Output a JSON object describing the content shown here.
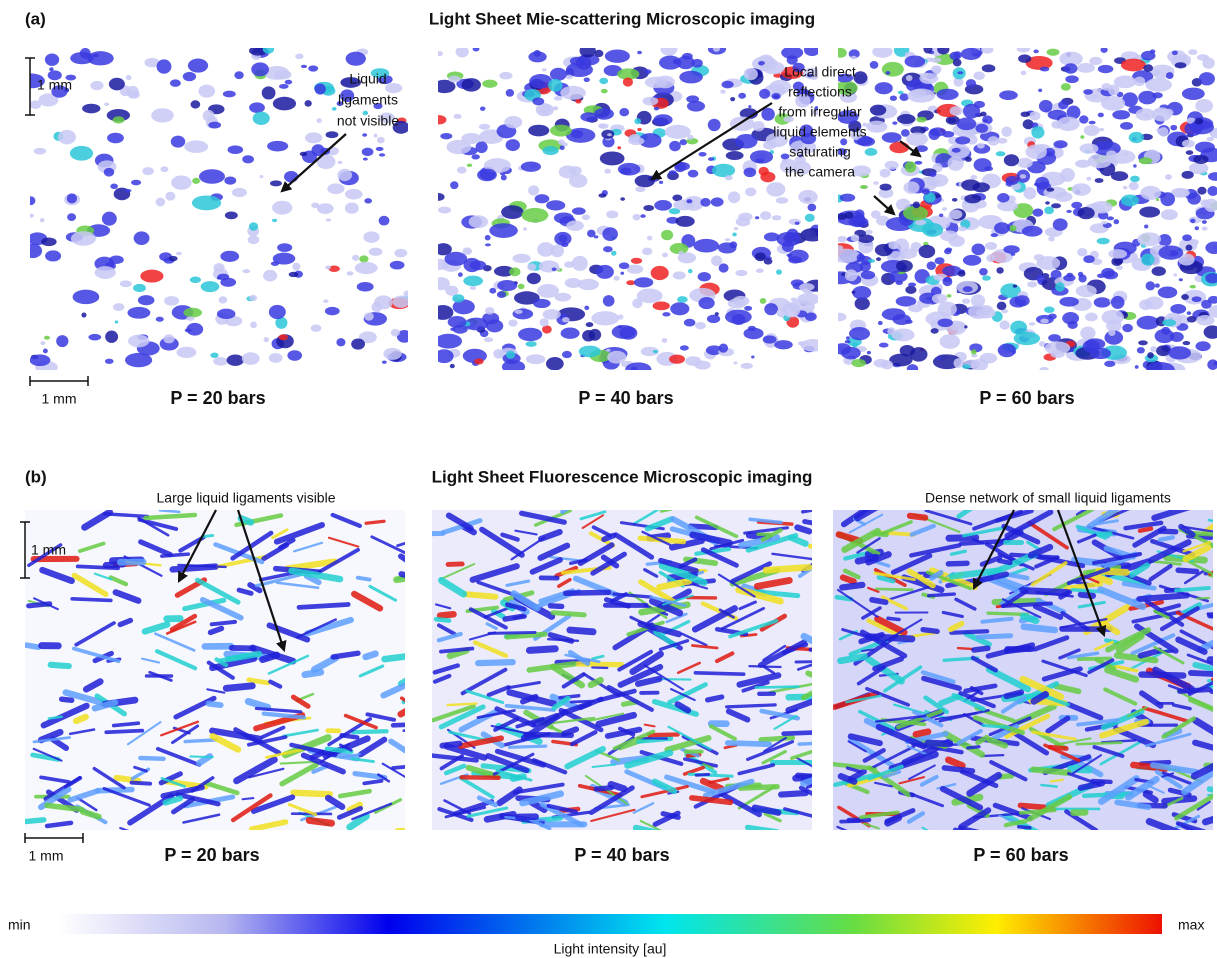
{
  "panel_a": {
    "label": "(a)",
    "title": "Light Sheet Mie-scattering Microscopic imaging",
    "scale_bar_vertical": "1 mm",
    "scale_bar_horizontal": "1 mm",
    "annotation_left": [
      "Liquid",
      "ligaments",
      "not visible"
    ],
    "annotation_right": [
      "Local direct",
      "reflections",
      "from irregular",
      "liquid elements",
      "saturating",
      "the camera"
    ],
    "conditions": [
      "P = 20 bars",
      "P = 40 bars",
      "P = 60 bars"
    ]
  },
  "panel_b": {
    "label": "(b)",
    "title": "Light Sheet Fluorescence Microscopic imaging",
    "scale_bar_vertical": "1 mm",
    "scale_bar_horizontal": "1 mm",
    "annotation_left": "Large liquid ligaments visible",
    "annotation_right": "Dense network of small liquid ligaments",
    "conditions": [
      "P = 20 bars",
      "P = 40 bars",
      "P = 60 bars"
    ]
  },
  "colorbar": {
    "min": "min",
    "max": "max",
    "label": "Light intensity [au]"
  }
}
